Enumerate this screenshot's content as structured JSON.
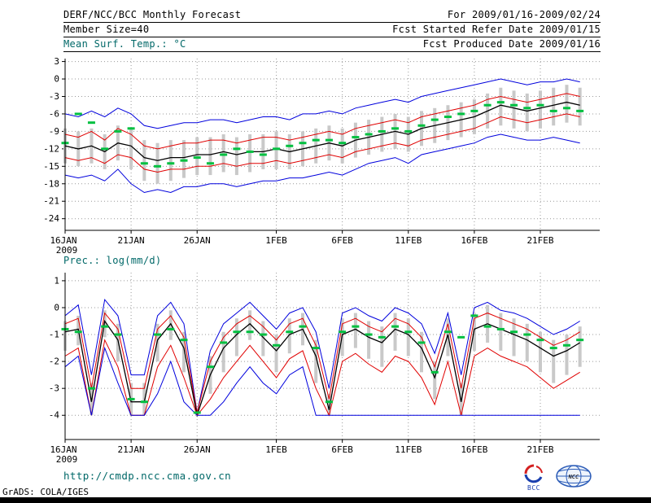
{
  "header": {
    "title": "DERF/NCC/BCC Monthly Forecast",
    "for_range": "For 2009/01/16-2009/02/24",
    "member_size": "Member Size=40",
    "refer_date": "Fcst Started Refer Date 2009/01/15",
    "produced_date": "Fcst Produced Date 2009/01/16",
    "temp_label": "Mean Surf. Temp.: °C",
    "prec_label": "Prec.: log(mm/d)"
  },
  "footer": {
    "url": "http://cmdp.ncc.cma.gov.cn",
    "credit": "GrADS: COLA/IGES",
    "bcc_label": "BCC",
    "ncc_label": "NCC"
  },
  "colors": {
    "text": "#000000",
    "teal_label": "#006868",
    "grid": "#999999",
    "bar": "#c9c9c9",
    "envelope_blue": "#0000dd",
    "quartile_red": "#e00000",
    "mean_black": "#000000",
    "obs_green": "#00c040"
  },
  "chart_data": [
    {
      "type": "line",
      "title": "Mean Surf. Temp.: °C",
      "ylabel": "°C",
      "grid": "dotted",
      "legend": "none",
      "n": 40,
      "ylim": [
        -26,
        3.5
      ],
      "yticks": [
        3,
        0,
        -3,
        -6,
        -9,
        -12,
        -15,
        -18,
        -21,
        -24
      ],
      "xticks": [
        {
          "i": 0,
          "label": "16JAN",
          "sub": "2009"
        },
        {
          "i": 5,
          "label": "21JAN"
        },
        {
          "i": 10,
          "label": "26JAN"
        },
        {
          "i": 16,
          "label": "1FEB"
        },
        {
          "i": 21,
          "label": "6FEB"
        },
        {
          "i": 26,
          "label": "11FEB"
        },
        {
          "i": 31,
          "label": "16FEB"
        },
        {
          "i": 36,
          "label": "21FEB"
        }
      ],
      "bars": {
        "name": "ensemble-spread-bar",
        "top": [
          -8.5,
          -9,
          -8.5,
          -9.5,
          -8,
          -8.5,
          -10.5,
          -11,
          -10.5,
          -10.5,
          -10,
          -10,
          -9.5,
          -10,
          -9.5,
          -9.5,
          -9,
          -9.5,
          -9,
          -8.5,
          -8,
          -8.5,
          -7.5,
          -7,
          -6.5,
          -6,
          -6.5,
          -5.5,
          -5,
          -4.5,
          -4,
          -3.5,
          -2.5,
          -1.5,
          -2,
          -2.5,
          -2,
          -1.5,
          -1,
          -1.5
        ],
        "bottom": [
          -14.5,
          -15,
          -14.5,
          -15.5,
          -14,
          -15.5,
          -17.5,
          -18,
          -17.5,
          -17,
          -16.5,
          -16.5,
          -16,
          -16.5,
          -16,
          -15.5,
          -15.5,
          -15.5,
          -15,
          -14.5,
          -14,
          -14.5,
          -13.5,
          -13,
          -12.5,
          -12,
          -12.5,
          -11.5,
          -11,
          -10.5,
          -10,
          -9.5,
          -8.5,
          -8,
          -8.5,
          -9,
          -8.5,
          -8,
          -7.5,
          -8
        ]
      },
      "series": [
        {
          "name": "ensemble-max",
          "color": "#0000dd",
          "width": 1,
          "values": [
            -6,
            -6.5,
            -5.5,
            -6.5,
            -5,
            -6,
            -8,
            -8.5,
            -8,
            -7.5,
            -7.5,
            -7,
            -7,
            -7.5,
            -7,
            -6.5,
            -6.5,
            -7,
            -6,
            -6,
            -5.5,
            -6,
            -5,
            -4.5,
            -4,
            -3.5,
            -4,
            -3,
            -2.5,
            -2,
            -1.5,
            -1,
            -0.5,
            0,
            -0.5,
            -1,
            -0.5,
            -0.5,
            0,
            -0.5
          ]
        },
        {
          "name": "upper-quartile",
          "color": "#e00000",
          "width": 1,
          "values": [
            -9.5,
            -10,
            -9,
            -10.5,
            -8.5,
            -9.5,
            -11.5,
            -12,
            -11.5,
            -11,
            -11,
            -10.5,
            -10.5,
            -11,
            -10.5,
            -10,
            -10,
            -10.5,
            -10,
            -9.5,
            -9,
            -9.5,
            -8.5,
            -8,
            -7.5,
            -7,
            -7.5,
            -6.5,
            -6,
            -5.5,
            -5,
            -4.5,
            -3.5,
            -3,
            -3.5,
            -4,
            -3.5,
            -3,
            -2.5,
            -3
          ]
        },
        {
          "name": "ensemble-mean",
          "color": "#000000",
          "width": 1.3,
          "values": [
            -11.5,
            -12,
            -11.5,
            -12.5,
            -11,
            -11.5,
            -13.5,
            -14,
            -13.5,
            -13.5,
            -13,
            -13,
            -12.5,
            -13,
            -12.5,
            -12.5,
            -12,
            -12.5,
            -12,
            -11.5,
            -11,
            -11.5,
            -10.5,
            -10,
            -9.5,
            -9,
            -9.5,
            -8.5,
            -8,
            -7.5,
            -7,
            -6.5,
            -5.5,
            -4.5,
            -5,
            -5.5,
            -5,
            -4.5,
            -4,
            -4.5
          ]
        },
        {
          "name": "lower-quartile",
          "color": "#e00000",
          "width": 1,
          "values": [
            -13.5,
            -14,
            -13.5,
            -14.5,
            -13,
            -13.5,
            -15.5,
            -16,
            -15.5,
            -15.5,
            -15,
            -15,
            -14.5,
            -15,
            -14.5,
            -14.5,
            -14,
            -14.5,
            -14,
            -13.5,
            -13,
            -13.5,
            -12.5,
            -12,
            -11.5,
            -11,
            -11.5,
            -10.5,
            -10,
            -9.5,
            -9,
            -8.5,
            -7.5,
            -6.5,
            -7,
            -7.5,
            -7,
            -6.5,
            -6,
            -6.5
          ]
        },
        {
          "name": "ensemble-min",
          "color": "#0000dd",
          "width": 1,
          "values": [
            -16.5,
            -17,
            -16.5,
            -17.5,
            -15.5,
            -18,
            -19.5,
            -19,
            -19.5,
            -18.5,
            -18.5,
            -18,
            -18,
            -18.5,
            -18,
            -17.5,
            -17.5,
            -17,
            -17,
            -16.5,
            -16,
            -16.5,
            -15.5,
            -14.5,
            -14,
            -13.5,
            -14.5,
            -13,
            -12.5,
            -12,
            -11.5,
            -11,
            -10,
            -9.5,
            -10,
            -10.5,
            -10.5,
            -10,
            -10.5,
            -11
          ]
        },
        {
          "name": "green-median-marks",
          "color": "#00c040",
          "style": "dashes",
          "values": [
            -11,
            -6,
            -7.5,
            -12,
            -9,
            -8.5,
            -14.5,
            -15,
            -14.5,
            -14,
            -13.5,
            -14.5,
            -13,
            -12,
            -12.5,
            -13,
            -12,
            -11.5,
            -11,
            -10.5,
            -10.5,
            -11,
            -10,
            -9.5,
            -9,
            -8.5,
            -9,
            -8,
            -7,
            -6.5,
            -6,
            -5.5,
            -4.5,
            -4,
            -4.5,
            -5,
            -4.5,
            -5.5,
            -5,
            -5.5
          ]
        }
      ]
    },
    {
      "type": "line",
      "title": "Prec.: log(mm/d)",
      "ylabel": "log(mm/d)",
      "grid": "dotted",
      "legend": "none",
      "n": 40,
      "ylim": [
        -4.9,
        1.3
      ],
      "yticks": [
        1,
        0,
        -1,
        -2,
        -3,
        -4
      ],
      "xticks": [
        {
          "i": 0,
          "label": "16JAN",
          "sub": "2009"
        },
        {
          "i": 5,
          "label": "21JAN"
        },
        {
          "i": 10,
          "label": "26JAN"
        },
        {
          "i": 16,
          "label": "1FEB"
        },
        {
          "i": 21,
          "label": "6FEB"
        },
        {
          "i": 26,
          "label": "11FEB"
        },
        {
          "i": 31,
          "label": "16FEB"
        },
        {
          "i": 36,
          "label": "21FEB"
        }
      ],
      "bars": {
        "name": "ensemble-spread-bar",
        "top": [
          -0.5,
          -0.3,
          -2.8,
          -0.1,
          -0.6,
          -2.8,
          -2.8,
          -0.6,
          -0.1,
          -0.9,
          -3.8,
          -1.8,
          -0.9,
          -0.4,
          -0.1,
          -0.5,
          -1,
          -0.4,
          -0.2,
          -1.2,
          -3.2,
          -0.4,
          -0.2,
          -0.5,
          -0.7,
          -0.2,
          -0.4,
          -0.9,
          -2,
          -0.4,
          -2.8,
          -0.2,
          0.1,
          -0.2,
          -0.4,
          -0.6,
          -0.9,
          -1.2,
          -1,
          -0.7
        ],
        "bottom": [
          -1.6,
          -1.4,
          -4,
          -1.1,
          -2,
          -4,
          -4,
          -2,
          -1.2,
          -2.4,
          -4,
          -3.2,
          -2.4,
          -1.8,
          -1.2,
          -1.8,
          -2.4,
          -1.7,
          -1.4,
          -2.8,
          -4,
          -1.8,
          -1.5,
          -1.9,
          -2.2,
          -1.6,
          -1.8,
          -2.4,
          -3.4,
          -1.8,
          -4,
          -1.6,
          -1.3,
          -1.6,
          -1.8,
          -2,
          -2.4,
          -2.8,
          -2.5,
          -2.2
        ]
      },
      "series": [
        {
          "name": "ensemble-max",
          "color": "#0000dd",
          "width": 1,
          "values": [
            -0.3,
            0.1,
            -2.5,
            0.3,
            -0.3,
            -2.5,
            -2.5,
            -0.3,
            0.2,
            -0.6,
            -3.9,
            -1.6,
            -0.6,
            -0.2,
            0.2,
            -0.3,
            -0.8,
            -0.2,
            0,
            -0.9,
            -3,
            -0.2,
            0,
            -0.3,
            -0.5,
            0,
            -0.2,
            -0.6,
            -1.7,
            -0.2,
            -2.5,
            0,
            0.2,
            -0.1,
            -0.2,
            -0.4,
            -0.7,
            -1,
            -0.8,
            -0.5
          ]
        },
        {
          "name": "upper-quartile",
          "color": "#e00000",
          "width": 1,
          "values": [
            -0.6,
            -0.4,
            -3,
            -0.2,
            -0.8,
            -3,
            -3,
            -0.8,
            -0.3,
            -1.1,
            -3.9,
            -2,
            -1.1,
            -0.6,
            -0.3,
            -0.7,
            -1.2,
            -0.6,
            -0.4,
            -1.4,
            -3.4,
            -0.6,
            -0.4,
            -0.7,
            -0.9,
            -0.4,
            -0.6,
            -1.1,
            -2.2,
            -0.6,
            -3,
            -0.4,
            -0.2,
            -0.4,
            -0.6,
            -0.8,
            -1.1,
            -1.4,
            -1.2,
            -0.9
          ]
        },
        {
          "name": "ensemble-mean",
          "color": "#000000",
          "width": 1.3,
          "values": [
            -0.9,
            -0.8,
            -3.5,
            -0.5,
            -1.2,
            -3.5,
            -3.5,
            -1.2,
            -0.6,
            -1.5,
            -4,
            -2.5,
            -1.5,
            -1,
            -0.6,
            -1.1,
            -1.6,
            -1,
            -0.8,
            -1.8,
            -3.8,
            -1,
            -0.8,
            -1.1,
            -1.3,
            -0.8,
            -1,
            -1.5,
            -2.6,
            -1,
            -3.5,
            -0.8,
            -0.6,
            -0.8,
            -1,
            -1.2,
            -1.5,
            -1.8,
            -1.6,
            -1.3
          ]
        },
        {
          "name": "lower-quartile",
          "color": "#e00000",
          "width": 1,
          "values": [
            -1.8,
            -1.5,
            -4,
            -1.2,
            -2.2,
            -4,
            -4,
            -2.2,
            -1.4,
            -2.6,
            -4,
            -3.4,
            -2.6,
            -2,
            -1.4,
            -2,
            -2.6,
            -1.9,
            -1.6,
            -3,
            -4,
            -2,
            -1.7,
            -2.1,
            -2.4,
            -1.8,
            -2,
            -2.6,
            -3.6,
            -2,
            -4,
            -1.8,
            -1.5,
            -1.8,
            -2,
            -2.2,
            -2.6,
            -3,
            -2.7,
            -2.4
          ]
        },
        {
          "name": "ensemble-min",
          "color": "#0000dd",
          "width": 1,
          "values": [
            -2.2,
            -1.8,
            -4,
            -1.5,
            -2.8,
            -4,
            -4,
            -3.2,
            -2,
            -3.5,
            -4,
            -4,
            -3.5,
            -2.8,
            -2.2,
            -2.8,
            -3.2,
            -2.5,
            -2.2,
            -4,
            -4,
            -4,
            -4,
            -4,
            -4,
            -4,
            -4,
            -4,
            -4,
            -4,
            -4,
            -4,
            -4,
            -4,
            -4,
            -4,
            -4,
            -4,
            -4,
            -4
          ]
        },
        {
          "name": "green-median-marks",
          "color": "#00c040",
          "style": "dashes",
          "values": [
            -0.8,
            -0.9,
            -3,
            -0.7,
            -1,
            -3.4,
            -3.5,
            -1,
            -0.8,
            -1.2,
            -3.9,
            -2.2,
            -1.3,
            -0.9,
            -0.9,
            -1,
            -1.4,
            -0.9,
            -0.7,
            -1.5,
            -3.5,
            -0.9,
            -0.7,
            -1,
            -1.1,
            -0.7,
            -0.9,
            -1.3,
            -2.4,
            -0.9,
            -1.1,
            -0.3,
            -0.7,
            -0.8,
            -0.9,
            -1,
            -1.2,
            -1.5,
            -1.4,
            -1.2
          ]
        }
      ]
    }
  ]
}
